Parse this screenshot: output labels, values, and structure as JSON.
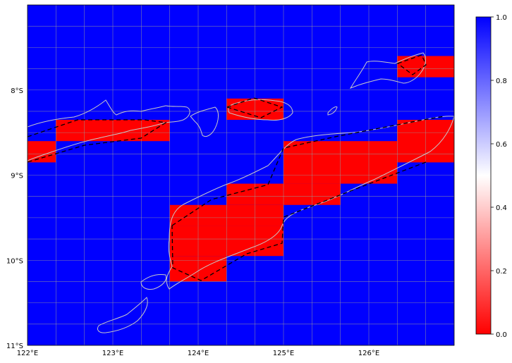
{
  "map": {
    "lon_range": [
      122,
      127
    ],
    "lat_range": [
      -11,
      -7
    ],
    "grid_lon": [
      122,
      122.333,
      122.667,
      123,
      123.333,
      123.667,
      124,
      124.333,
      124.667,
      125,
      125.333,
      125.667,
      126,
      126.333,
      126.667,
      127
    ],
    "grid_lat": [
      -11,
      -10.75,
      -10.5,
      -10.25,
      -10,
      -9.75,
      -9.5,
      -9.25,
      -9,
      -8.75,
      -8.5,
      -8.25,
      -8,
      -7.75,
      -7.5,
      -7.25,
      -7
    ],
    "x_ticks": [
      {
        "value": 122,
        "label": "122°E"
      },
      {
        "value": 123,
        "label": "123°E"
      },
      {
        "value": 124,
        "label": "124°E"
      },
      {
        "value": 125,
        "label": "125°E"
      },
      {
        "value": 126,
        "label": "126°E"
      }
    ],
    "y_ticks": [
      {
        "value": -8,
        "label": "8°S"
      },
      {
        "value": -9,
        "label": "9°S"
      },
      {
        "value": -10,
        "label": "10°S"
      },
      {
        "value": -11,
        "label": "11°S"
      }
    ],
    "background_color": "#0000ff",
    "highlight_color": "#ff0000",
    "grid": true
  },
  "chart_data": {
    "type": "heatmap",
    "background_value": 1.0,
    "cells": [
      {
        "lon": [
          122.333,
          123.667
        ],
        "lat": [
          -8.6,
          -8.35
        ],
        "value": 0.0
      },
      {
        "lon": [
          122.0,
          122.333
        ],
        "lat": [
          -8.85,
          -8.6
        ],
        "value": 0.0
      },
      {
        "lon": [
          124.333,
          125.0
        ],
        "lat": [
          -8.35,
          -8.1
        ],
        "value": 0.0
      },
      {
        "lon": [
          126.333,
          127.0
        ],
        "lat": [
          -7.85,
          -7.6
        ],
        "value": 0.0
      },
      {
        "lon": [
          126.333,
          127.0
        ],
        "lat": [
          -8.85,
          -8.35
        ],
        "value": 0.0
      },
      {
        "lon": [
          125.0,
          126.333
        ],
        "lat": [
          -9.1,
          -8.6
        ],
        "value": 0.0
      },
      {
        "lon": [
          124.333,
          125.0
        ],
        "lat": [
          -9.35,
          -9.1
        ],
        "value": 0.0
      },
      {
        "lon": [
          125.0,
          125.667
        ],
        "lat": [
          -9.35,
          -9.1
        ],
        "value": 0.0
      },
      {
        "lon": [
          123.667,
          125.0
        ],
        "lat": [
          -9.6,
          -9.35
        ],
        "value": 0.0
      },
      {
        "lon": [
          123.667,
          125.0
        ],
        "lat": [
          -9.95,
          -9.6
        ],
        "value": 0.0
      },
      {
        "lon": [
          123.667,
          124.333
        ],
        "lat": [
          -10.25,
          -9.95
        ],
        "value": 0.0
      }
    ],
    "colorbar": {
      "vmin": 0.0,
      "vmax": 1.0,
      "colors": [
        "#ff0000",
        "#ffffff",
        "#0000ff"
      ],
      "ticks": [
        {
          "value": 0.0,
          "label": "0.0"
        },
        {
          "value": 0.2,
          "label": "0.2"
        },
        {
          "value": 0.4,
          "label": "0.4"
        },
        {
          "value": 0.6,
          "label": "0.6"
        },
        {
          "value": 0.8,
          "label": "0.8"
        },
        {
          "value": 1.0,
          "label": "1.0"
        }
      ]
    }
  }
}
